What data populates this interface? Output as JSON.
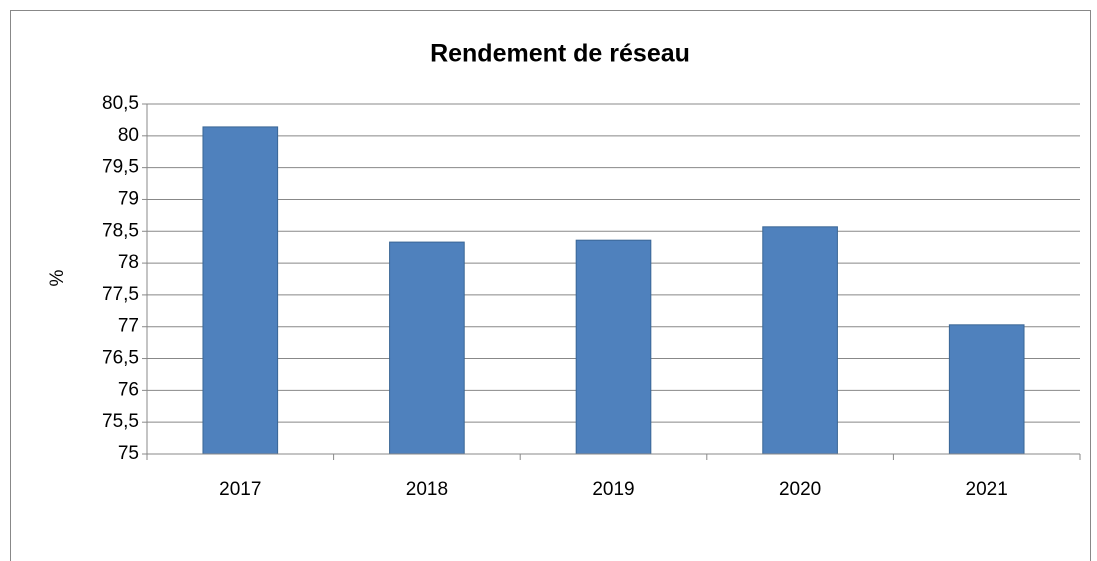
{
  "chart_data": {
    "type": "bar",
    "title": "Rendement de réseau",
    "y_label": "%",
    "categories": [
      "2017",
      "2018",
      "2019",
      "2020",
      "2021"
    ],
    "values": [
      80.14,
      78.33,
      78.36,
      78.57,
      77.03
    ],
    "color": "#4f81bd",
    "ylim": [
      75,
      80.5
    ],
    "yticks": [
      75,
      {
        "value": 75.5,
        "label": "75,5"
      },
      76,
      {
        "value": 76.5,
        "label": "76,5"
      },
      77,
      {
        "value": 77.5,
        "label": "77,5"
      },
      78,
      {
        "value": 78.5,
        "label": "78,5"
      },
      79,
      {
        "value": 79.5,
        "label": "79,5"
      },
      80,
      {
        "value": 80.5,
        "label": "80,5"
      }
    ],
    "grid": true
  }
}
